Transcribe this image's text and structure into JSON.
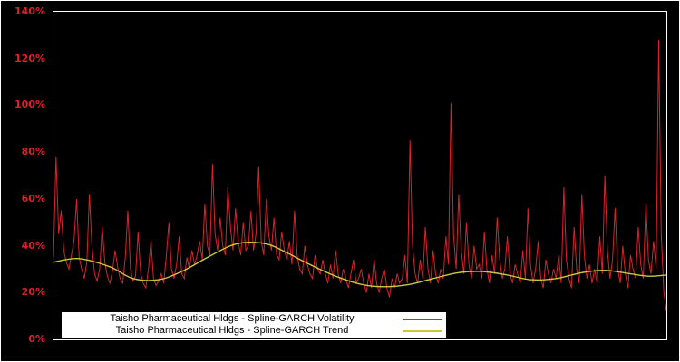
{
  "colors": {
    "background": "#000000",
    "frame": "#ffffff",
    "axis_label": "#d8232a",
    "volatility": "#d8232a",
    "trend": "#c8c83c",
    "legend_bg": "#ffffff",
    "legend_text": "#000000"
  },
  "chart_data": {
    "type": "line",
    "title": "",
    "xlabel": "",
    "ylabel": "",
    "ylim": [
      0,
      140
    ],
    "grid": false,
    "legend_position": "bottom-center",
    "y_ticks": [
      {
        "value": 0,
        "label": "0%"
      },
      {
        "value": 20,
        "label": "20%"
      },
      {
        "value": 40,
        "label": "40%"
      },
      {
        "value": 60,
        "label": "60%"
      },
      {
        "value": 80,
        "label": "80%"
      },
      {
        "value": 100,
        "label": "100%"
      },
      {
        "value": 120,
        "label": "120%"
      },
      {
        "value": 140,
        "label": "140%"
      }
    ],
    "series": [
      {
        "name": "Taisho Pharmaceutical Hldgs - Spline-GARCH Volatility",
        "color": "#d8232a",
        "unit": "%",
        "values": [
          35,
          78,
          45,
          55,
          38,
          33,
          30,
          36,
          42,
          60,
          35,
          30,
          26,
          33,
          62,
          40,
          28,
          25,
          30,
          48,
          33,
          27,
          24,
          29,
          38,
          31,
          26,
          24,
          35,
          55,
          30,
          25,
          27,
          46,
          28,
          24,
          22,
          30,
          42,
          26,
          23,
          25,
          28,
          24,
          36,
          50,
          30,
          26,
          32,
          44,
          28,
          26,
          35,
          30,
          38,
          32,
          36,
          42,
          34,
          58,
          40,
          36,
          75,
          45,
          38,
          52,
          40,
          36,
          65,
          48,
          38,
          56,
          42,
          36,
          50,
          38,
          40,
          55,
          38,
          45,
          74,
          42,
          36,
          60,
          44,
          38,
          52,
          36,
          34,
          46,
          38,
          34,
          42,
          32,
          55,
          36,
          30,
          28,
          40,
          32,
          28,
          26,
          36,
          30,
          28,
          34,
          28,
          24,
          32,
          26,
          38,
          28,
          24,
          30,
          26,
          22,
          28,
          34,
          24,
          26,
          30,
          24,
          20,
          28,
          22,
          34,
          24,
          20,
          26,
          30,
          22,
          18,
          26,
          22,
          28,
          24,
          26,
          36,
          24,
          85,
          40,
          28,
          24,
          34,
          26,
          48,
          30,
          24,
          38,
          28,
          24,
          30,
          26,
          44,
          32,
          101,
          45,
          30,
          62,
          38,
          28,
          50,
          32,
          26,
          40,
          30,
          32,
          26,
          46,
          30,
          24,
          36,
          28,
          52,
          34,
          26,
          30,
          44,
          28,
          24,
          32,
          28,
          24,
          38,
          26,
          56,
          32,
          24,
          30,
          42,
          26,
          22,
          34,
          28,
          24,
          30,
          26,
          36,
          24,
          65,
          34,
          26,
          22,
          48,
          30,
          24,
          62,
          36,
          26,
          32,
          24,
          30,
          24,
          44,
          28,
          70,
          38,
          26,
          34,
          56,
          30,
          24,
          40,
          28,
          22,
          36,
          30,
          26,
          48,
          32,
          26,
          58,
          34,
          28,
          42,
          30,
          128,
          45,
          20,
          12
        ]
      },
      {
        "name": "Taisho Pharmaceutical Hldgs - Spline-GARCH Trend",
        "color": "#c8c83c",
        "unit": "%",
        "x": [
          0,
          10,
          22,
          31,
          41,
          50,
          60,
          69,
          76,
          84,
          91,
          100,
          110,
          120,
          129,
          139,
          148,
          158,
          167,
          177,
          186,
          196,
          206,
          215,
          225,
          232,
          239
        ],
        "values": [
          33,
          34.5,
          31,
          26,
          25.5,
          29,
          35,
          40,
          41.5,
          40.5,
          37,
          32,
          27,
          23.5,
          22.5,
          23.5,
          26,
          28.5,
          29,
          27.5,
          25.5,
          26,
          28.5,
          29.5,
          28,
          27,
          27.5
        ]
      }
    ]
  }
}
